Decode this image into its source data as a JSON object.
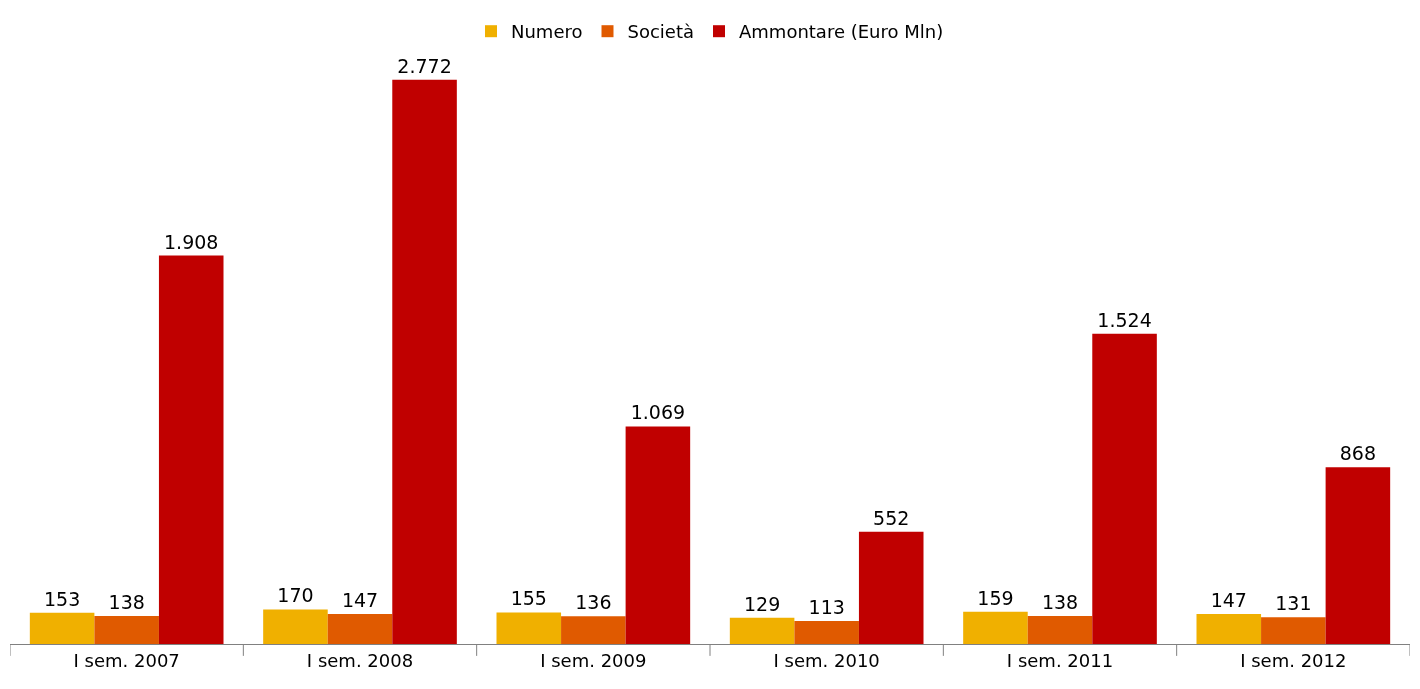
{
  "chart_data": {
    "type": "bar",
    "categories": [
      "I sem. 2007",
      "I sem. 2008",
      "I sem. 2009",
      "I sem. 2010",
      "I sem. 2011",
      "I sem. 2012"
    ],
    "series": [
      {
        "name": "Numero",
        "color": "#f0b000",
        "values": [
          153,
          170,
          155,
          129,
          159,
          147
        ],
        "value_labels": [
          "153",
          "170",
          "155",
          "129",
          "159",
          "147"
        ]
      },
      {
        "name": "Società",
        "color": "#e05a00",
        "values": [
          138,
          147,
          136,
          113,
          138,
          131
        ],
        "value_labels": [
          "138",
          "147",
          "136",
          "113",
          "138",
          "131"
        ]
      },
      {
        "name": "Ammontare (Euro Mln)",
        "color": "#c00000",
        "values": [
          1908,
          2772,
          1069,
          552,
          1524,
          868
        ],
        "value_labels": [
          "1.908",
          "2.772",
          "1.069",
          "552",
          "1.524",
          "868"
        ]
      }
    ],
    "legend": "top",
    "tick_labels": "x"
  }
}
